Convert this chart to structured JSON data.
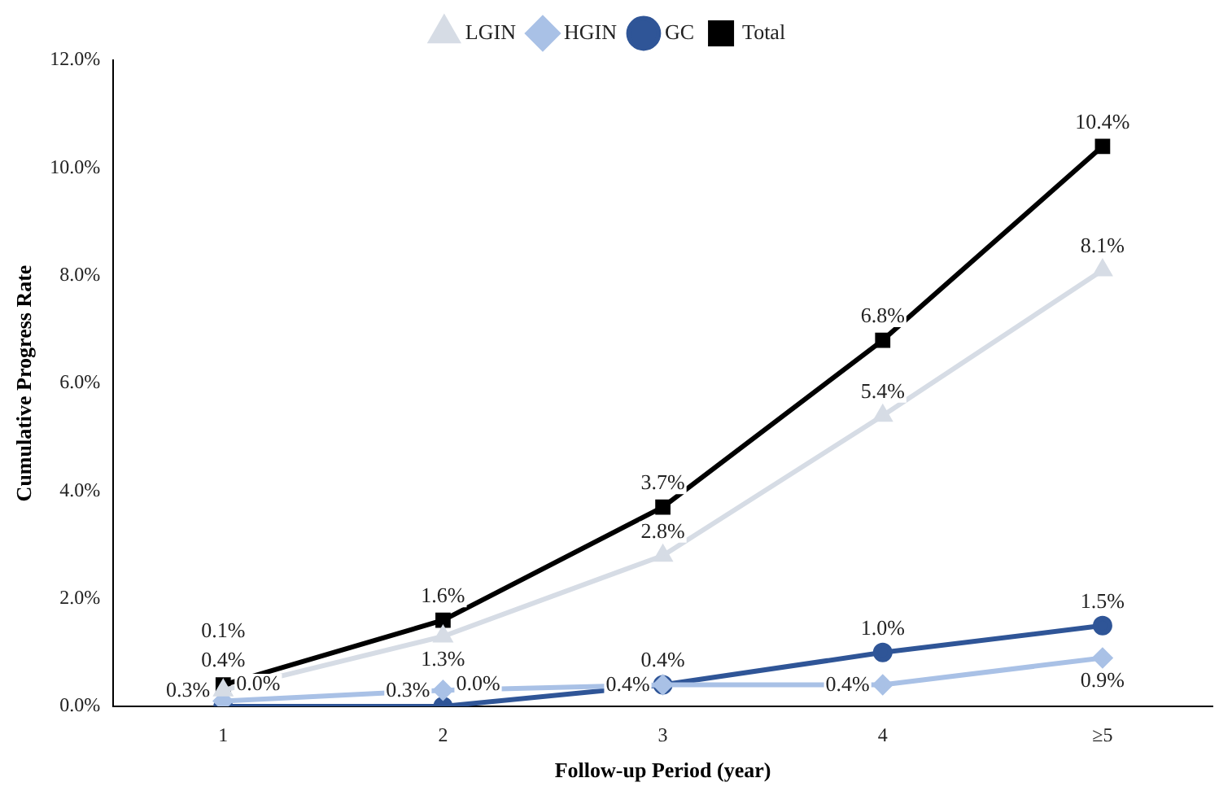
{
  "chart_data": {
    "type": "line",
    "xlabel": "Follow-up Period (year)",
    "ylabel": "Cumulative Progress Rate",
    "categories": [
      "1",
      "2",
      "3",
      "4",
      "≥5"
    ],
    "ylim": [
      0,
      12
    ],
    "yticks": [
      {
        "value": 0,
        "label": "0.0%"
      },
      {
        "value": 2,
        "label": "2.0%"
      },
      {
        "value": 4,
        "label": "4.0%"
      },
      {
        "value": 6,
        "label": "6.0%"
      },
      {
        "value": 8,
        "label": "8.0%"
      },
      {
        "value": 10,
        "label": "10.0%"
      },
      {
        "value": 12,
        "label": "12.0%"
      }
    ],
    "grid": false,
    "legend": "top",
    "line_style": "solid",
    "series": [
      {
        "name": "LGIN",
        "color": "#d6dce5",
        "marker": "triangle",
        "values": [
          0.3,
          1.3,
          2.8,
          5.4,
          8.1
        ],
        "value_labels": [
          "0.3%",
          "1.3%",
          "2.8%",
          "5.4%",
          "8.1%"
        ]
      },
      {
        "name": "HGIN",
        "color": "#a9c1e6",
        "marker": "diamond",
        "values": [
          0.1,
          0.3,
          0.4,
          0.4,
          0.9
        ],
        "value_labels": [
          "0.1%",
          "0.3%",
          "0.4%",
          "0.4%",
          "0.9%"
        ]
      },
      {
        "name": "GC",
        "color": "#2f5597",
        "marker": "circle",
        "values": [
          0.0,
          0.0,
          0.4,
          1.0,
          1.5
        ],
        "value_labels": [
          "0.0%",
          "0.0%",
          "0.4%",
          "1.0%",
          "1.5%"
        ]
      },
      {
        "name": "Total",
        "color": "#000000",
        "marker": "square",
        "values": [
          0.4,
          1.6,
          3.7,
          6.8,
          10.4
        ],
        "value_labels": [
          "0.4%",
          "1.6%",
          "3.7%",
          "6.8%",
          "10.4%"
        ]
      }
    ]
  }
}
